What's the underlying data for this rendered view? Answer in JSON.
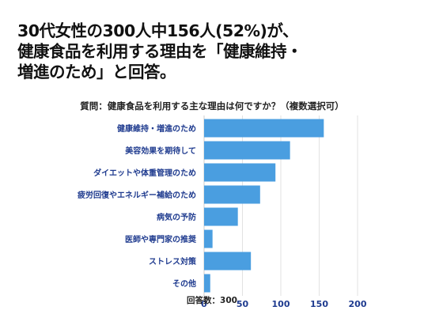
{
  "headline": {
    "lines": [
      "30代女性の300人中156人(52%)が、",
      "健康食品を利用する理由を「健康維持・",
      "増進のため」と回答。"
    ]
  },
  "chart_data": {
    "type": "bar",
    "orientation": "horizontal",
    "title": "質問：健康食品を利用する主な理由は何ですか？（複数選択可）",
    "categories": [
      "健康維持・増進のため",
      "美容効果を期待して",
      "ダイエットや体重管理のため",
      "疲労回復やエネルギー補給のため",
      "病気の予防",
      "医師や専門家の推奨",
      "ストレス対策",
      "その他"
    ],
    "values": [
      156,
      112,
      93,
      73,
      44,
      11,
      61,
      8
    ],
    "xlim": [
      0,
      200
    ],
    "xticks": [
      "0",
      "50",
      "100",
      "150",
      "200"
    ],
    "grid": true,
    "bar_color": "#4a9ee0",
    "gridline_color": "#e2e2e2",
    "label_color": "#1f3b8f"
  },
  "footer": {
    "note": "回答数：300"
  }
}
